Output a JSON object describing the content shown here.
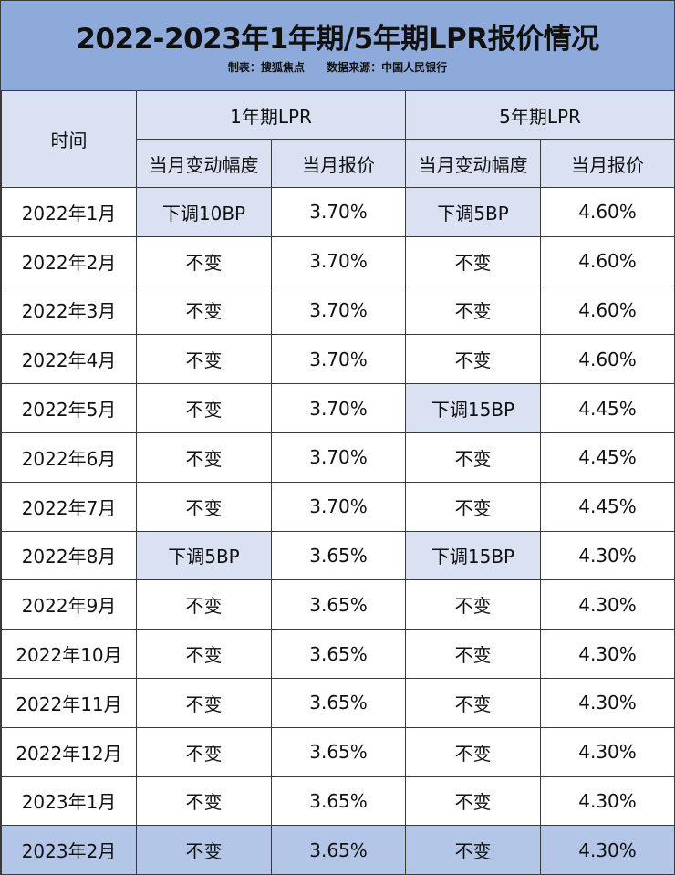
{
  "title": "2022-2023年1年期/5年期LPR报价情况",
  "credits": {
    "maker": "制表：搜狐焦点",
    "source": "数据来源：中国人民银行"
  },
  "header": {
    "time": "时间",
    "group1": "1年期LPR",
    "group2": "5年期LPR",
    "change": "当月变动幅度",
    "price": "当月报价"
  },
  "highlight_color": "#d9e1f2",
  "rows": [
    {
      "month": "2022年1月",
      "c1": "下调10BP",
      "p1": "3.70%",
      "c5": "下调5BP",
      "p5": "4.60%"
    },
    {
      "month": "2022年2月",
      "c1": "不变",
      "p1": "3.70%",
      "c5": "不变",
      "p5": "4.60%"
    },
    {
      "month": "2022年3月",
      "c1": "不变",
      "p1": "3.70%",
      "c5": "不变",
      "p5": "4.60%"
    },
    {
      "month": "2022年4月",
      "c1": "不变",
      "p1": "3.70%",
      "c5": "不变",
      "p5": "4.60%"
    },
    {
      "month": "2022年5月",
      "c1": "不变",
      "p1": "3.70%",
      "c5": "下调15BP",
      "p5": "4.45%"
    },
    {
      "month": "2022年6月",
      "c1": "不变",
      "p1": "3.70%",
      "c5": "不变",
      "p5": "4.45%"
    },
    {
      "month": "2022年7月",
      "c1": "不变",
      "p1": "3.70%",
      "c5": "不变",
      "p5": "4.45%"
    },
    {
      "month": "2022年8月",
      "c1": "下调5BP",
      "p1": "3.65%",
      "c5": "下调15BP",
      "p5": "4.30%"
    },
    {
      "month": "2022年9月",
      "c1": "不变",
      "p1": "3.65%",
      "c5": "不变",
      "p5": "4.30%"
    },
    {
      "month": "2022年10月",
      "c1": "不变",
      "p1": "3.65%",
      "c5": "不变",
      "p5": "4.30%"
    },
    {
      "month": "2022年11月",
      "c1": "不变",
      "p1": "3.65%",
      "c5": "不变",
      "p5": "4.30%"
    },
    {
      "month": "2022年12月",
      "c1": "不变",
      "p1": "3.65%",
      "c5": "不变",
      "p5": "4.30%"
    },
    {
      "month": "2023年1月",
      "c1": "不变",
      "p1": "3.65%",
      "c5": "不变",
      "p5": "4.30%"
    },
    {
      "month": "2023年2月",
      "c1": "不变",
      "p1": "3.65%",
      "c5": "不变",
      "p5": "4.30%"
    }
  ]
}
